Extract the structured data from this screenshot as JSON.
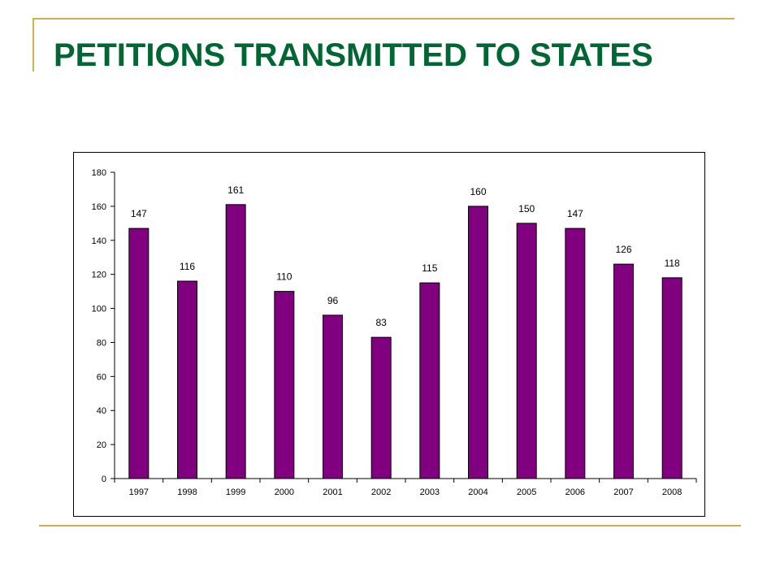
{
  "slide": {
    "title": "PETITIONS TRANSMITTED TO STATES",
    "accent_color": "#c8b44a",
    "title_color": "#006633"
  },
  "chart_data": {
    "type": "bar",
    "categories": [
      "1997",
      "1998",
      "1999",
      "2000",
      "2001",
      "2002",
      "2003",
      "2004",
      "2005",
      "2006",
      "2007",
      "2008"
    ],
    "values": [
      147,
      116,
      161,
      110,
      96,
      83,
      115,
      160,
      150,
      147,
      126,
      118
    ],
    "title": "",
    "xlabel": "",
    "ylabel": "",
    "ylim": [
      0,
      180
    ],
    "yticks": [
      0,
      20,
      40,
      60,
      80,
      100,
      120,
      140,
      160,
      180
    ],
    "data_labels": true,
    "legend": false,
    "grid": false,
    "bar_color": "#800080"
  }
}
